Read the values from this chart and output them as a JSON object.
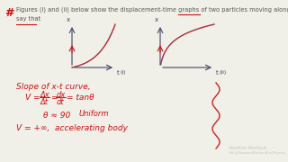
{
  "bg_color": "#f0efe8",
  "title_line1": "Figures (i) and (ii) below show the displacement-time graphs of two particles moving along the x-axis. We can",
  "title_line2": "say that",
  "title_fontsize": 4.8,
  "title_color": "#555555",
  "hashtag_color": "#cc1111",
  "axis_color": "#444466",
  "curve_red": "#cc2222",
  "curve_blue": "#3355aa",
  "underline_color": "#cc1111",
  "body_color": "#cc1111",
  "squiggle_color": "#cc2222",
  "watermark": "Newton Workout",
  "watermark_sub": "bit.ly/NewtonWorkoutForPhysics",
  "watermark_color": "#bbbbbb"
}
